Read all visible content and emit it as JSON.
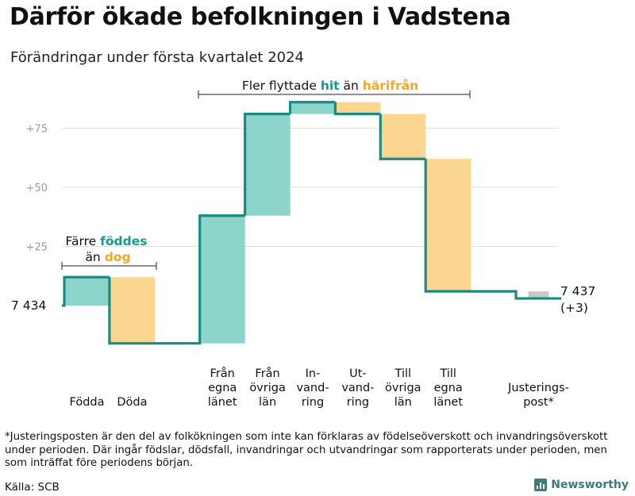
{
  "title": "Därför ökade befolkningen i Vadstena",
  "subtitle": "Förändringar under första kvartalet 2024",
  "colors": {
    "increase": "#8dd5cb",
    "decrease": "#fad690",
    "adjustment": "#c8c8c8",
    "line": "#1a8a82",
    "accent_teal": "#1a968c",
    "accent_orange": "#f5a623",
    "grid": "#e2e2e2"
  },
  "chart_data": {
    "type": "waterfall",
    "title": "Därför ökade befolkningen i Vadstena",
    "subtitle": "Förändringar under första kvartalet 2024",
    "y_axis": {
      "relative_to": 7434,
      "min": -20,
      "max": 90,
      "ticks": [
        25,
        50,
        75
      ],
      "tick_labels": [
        "+25",
        "+50",
        "+75"
      ]
    },
    "start": {
      "value": 7434,
      "label": "7 434"
    },
    "end": {
      "value": 7437,
      "label": "7 437",
      "change_label": "(+3)"
    },
    "steps": [
      {
        "id": "fodda",
        "label_lines": [
          "Födda"
        ],
        "value": 12,
        "kind": "increase"
      },
      {
        "id": "doda",
        "label_lines": [
          "Döda"
        ],
        "value": -28,
        "kind": "decrease"
      },
      {
        "id": "egna-lanet",
        "label_lines": [
          "Från",
          "egna",
          "länet"
        ],
        "value": 54,
        "kind": "increase"
      },
      {
        "id": "ovriga-lan",
        "label_lines": [
          "Från",
          "övriga",
          "län"
        ],
        "value": 43,
        "kind": "increase"
      },
      {
        "id": "invandring",
        "label_lines": [
          "In-",
          "vand-",
          "ring"
        ],
        "value": 5,
        "kind": "increase"
      },
      {
        "id": "utvandring",
        "label_lines": [
          "Ut-",
          "vand-",
          "ring"
        ],
        "value": -5,
        "kind": "decrease"
      },
      {
        "id": "till-ovriga",
        "label_lines": [
          "Till",
          "övriga",
          "län"
        ],
        "value": -19,
        "kind": "decrease"
      },
      {
        "id": "till-egna",
        "label_lines": [
          "Till",
          "egna",
          "länet"
        ],
        "value": -56,
        "kind": "decrease"
      },
      {
        "id": "justering",
        "label_lines": [
          "Justerings-",
          "post*"
        ],
        "value": -3,
        "kind": "adjustment"
      }
    ],
    "annotations": {
      "births": {
        "line1_plain": "Färre",
        "line1_highlight": "föddes",
        "line2_plain": "än",
        "line2_highlight": "dog"
      },
      "migration": {
        "plain1": "Fler flyttade",
        "highlight1": "hit",
        "plain2": "än",
        "highlight2": "härifrån"
      }
    }
  },
  "footnote": "*Justeringsposten är den del av folkökningen som inte kan förklaras av födelseöverskott och invandringsöverskott under perioden. Där ingår födslar, dödsfall, invandringar och utvandringar som rapporterats under perioden, men som inträffat före periodens början.",
  "source": "Källa: SCB",
  "brand": "Newsworthy"
}
